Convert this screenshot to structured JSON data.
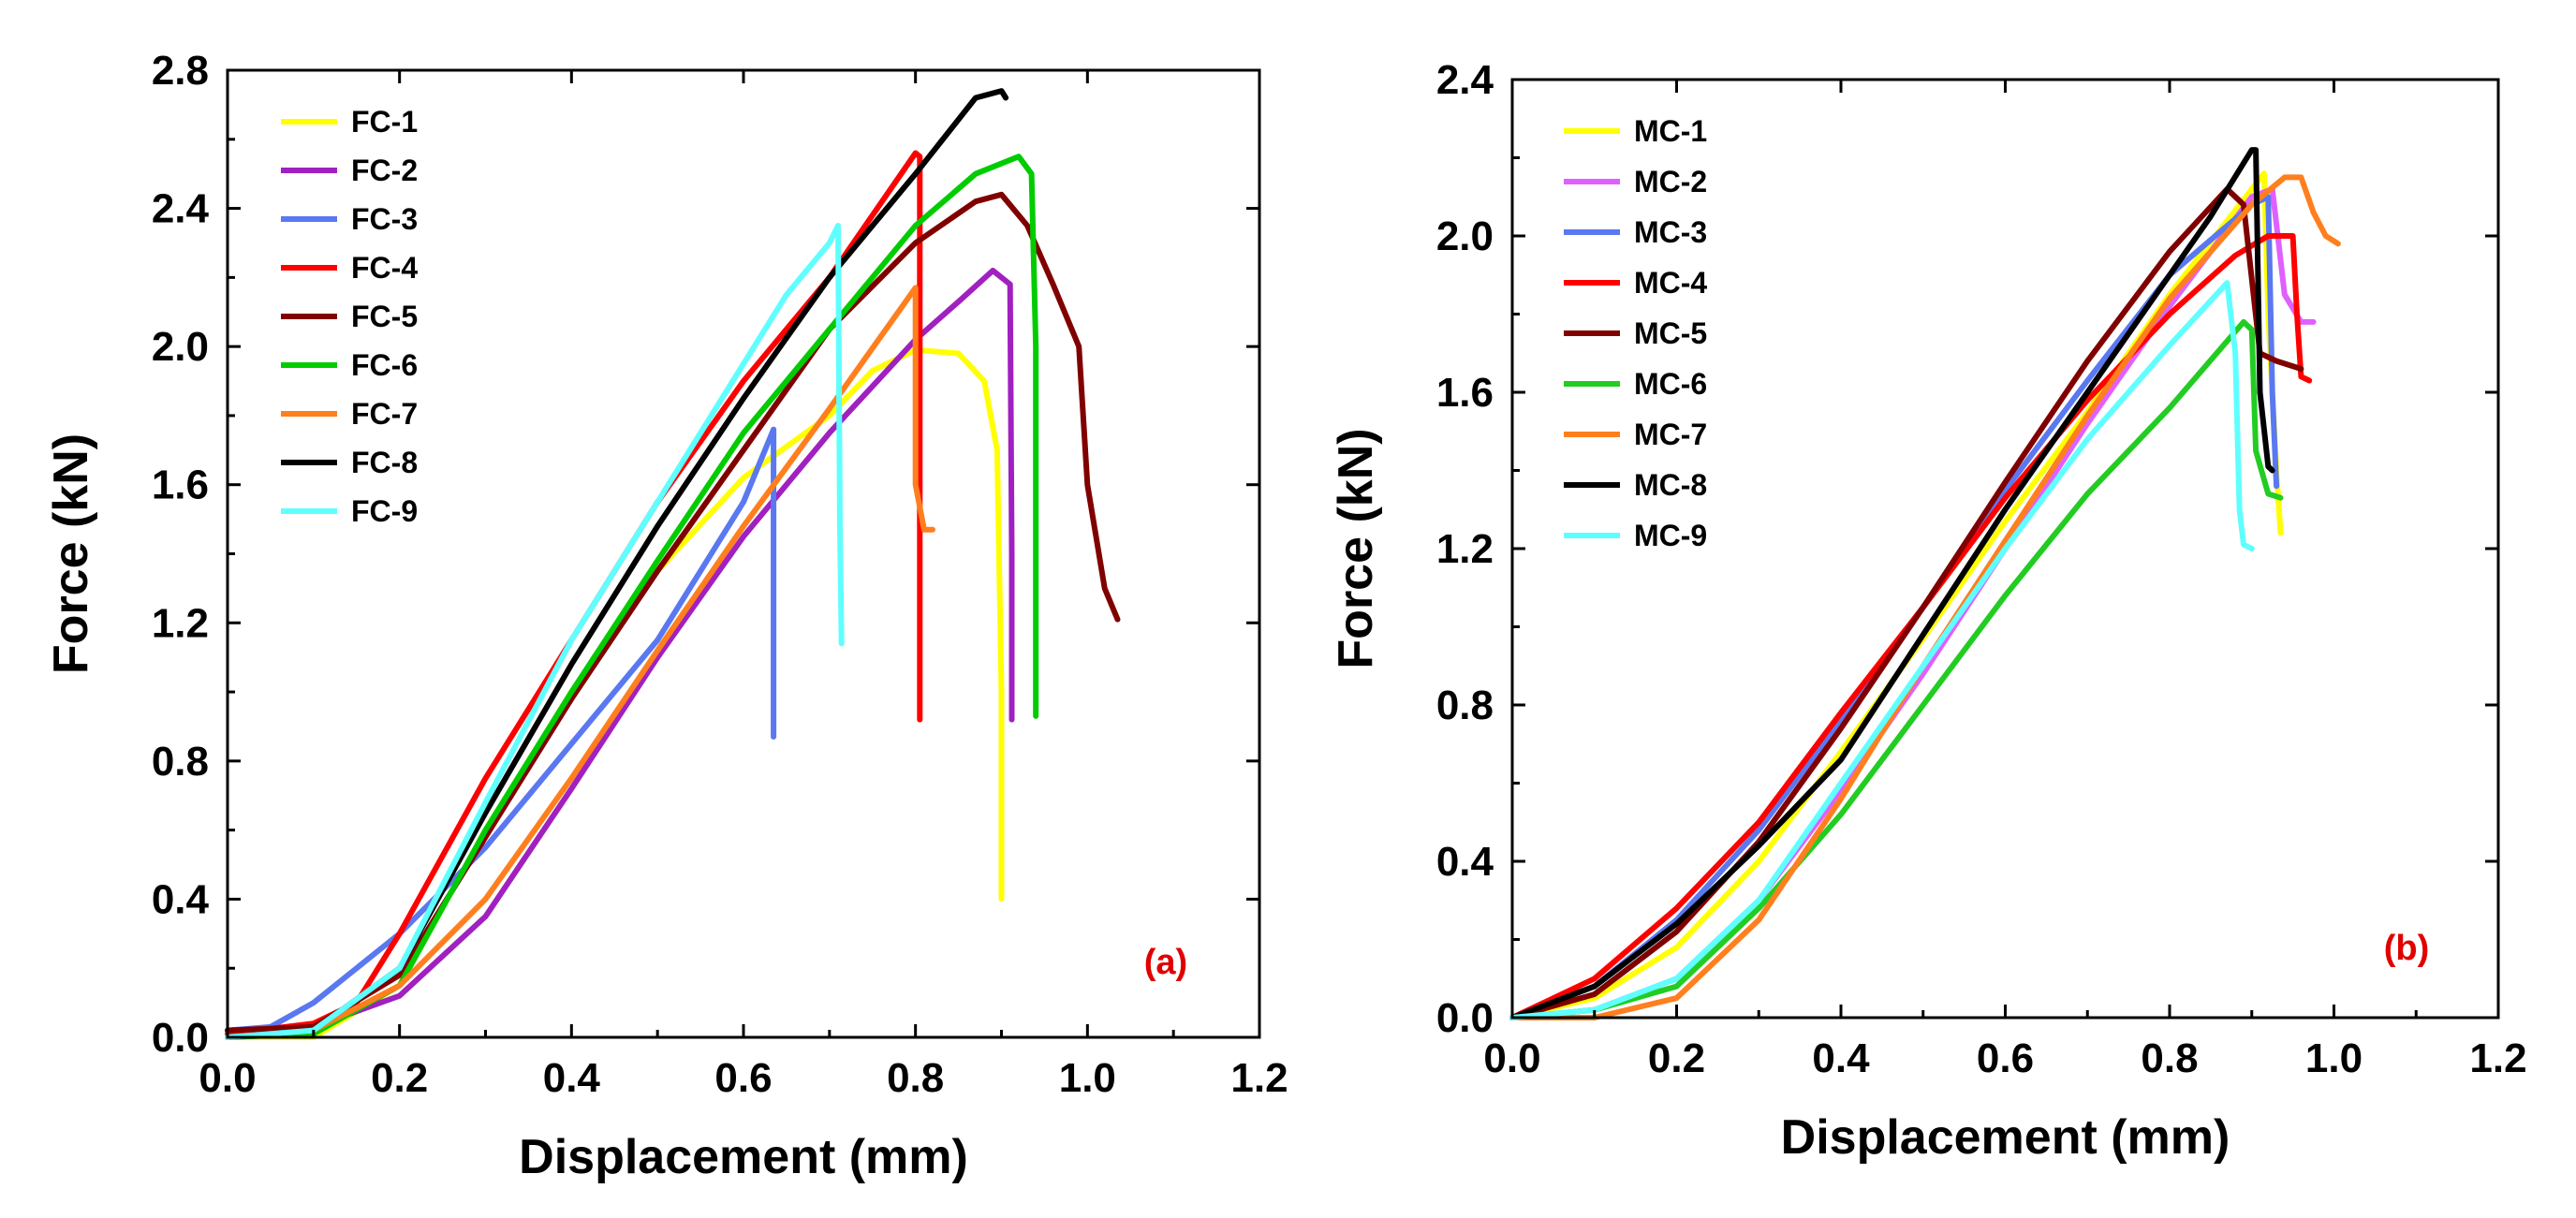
{
  "chart_data": [
    {
      "type": "line",
      "panel": "(a)",
      "xlabel": "Displacement (mm)",
      "ylabel": "Force (kN)",
      "xlim": [
        0.0,
        1.2
      ],
      "ylim": [
        0.0,
        2.8
      ],
      "xticks": [
        "0.0",
        "0.2",
        "0.4",
        "0.6",
        "0.8",
        "1.0",
        "1.2"
      ],
      "yticks": [
        "0.0",
        "0.4",
        "0.8",
        "1.2",
        "1.6",
        "2.0",
        "2.4",
        "2.8"
      ],
      "legend_position": "top-left",
      "series": [
        {
          "name": "FC-1",
          "color": "#ffff00",
          "points": [
            [
              0.0,
              0.0
            ],
            [
              0.1,
              0.0
            ],
            [
              0.2,
              0.15
            ],
            [
              0.3,
              0.6
            ],
            [
              0.4,
              1.0
            ],
            [
              0.5,
              1.35
            ],
            [
              0.6,
              1.62
            ],
            [
              0.7,
              1.8
            ],
            [
              0.75,
              1.93
            ],
            [
              0.8,
              1.99
            ],
            [
              0.85,
              1.98
            ],
            [
              0.88,
              1.9
            ],
            [
              0.895,
              1.7
            ],
            [
              0.9,
              1.0
            ],
            [
              0.9,
              0.4
            ]
          ]
        },
        {
          "name": "FC-2",
          "color": "#a020c0",
          "points": [
            [
              0.0,
              0.02
            ],
            [
              0.1,
              0.03
            ],
            [
              0.2,
              0.12
            ],
            [
              0.3,
              0.35
            ],
            [
              0.4,
              0.72
            ],
            [
              0.5,
              1.1
            ],
            [
              0.6,
              1.45
            ],
            [
              0.7,
              1.75
            ],
            [
              0.8,
              2.02
            ],
            [
              0.85,
              2.13
            ],
            [
              0.89,
              2.22
            ],
            [
              0.91,
              2.18
            ],
            [
              0.912,
              1.4
            ],
            [
              0.912,
              0.92
            ]
          ]
        },
        {
          "name": "FC-3",
          "color": "#5a78f0",
          "points": [
            [
              0.0,
              0.02
            ],
            [
              0.05,
              0.03
            ],
            [
              0.1,
              0.1
            ],
            [
              0.2,
              0.3
            ],
            [
              0.3,
              0.55
            ],
            [
              0.4,
              0.85
            ],
            [
              0.5,
              1.15
            ],
            [
              0.6,
              1.55
            ],
            [
              0.635,
              1.76
            ],
            [
              0.635,
              1.3
            ],
            [
              0.635,
              0.87
            ]
          ]
        },
        {
          "name": "FC-4",
          "color": "#ff0000",
          "points": [
            [
              0.0,
              0.01
            ],
            [
              0.1,
              0.04
            ],
            [
              0.15,
              0.1
            ],
            [
              0.2,
              0.3
            ],
            [
              0.3,
              0.75
            ],
            [
              0.4,
              1.15
            ],
            [
              0.5,
              1.55
            ],
            [
              0.6,
              1.9
            ],
            [
              0.7,
              2.2
            ],
            [
              0.8,
              2.56
            ],
            [
              0.805,
              2.55
            ],
            [
              0.805,
              1.6
            ],
            [
              0.805,
              0.92
            ]
          ]
        },
        {
          "name": "FC-5",
          "color": "#800000",
          "points": [
            [
              0.0,
              0.02
            ],
            [
              0.1,
              0.03
            ],
            [
              0.2,
              0.18
            ],
            [
              0.3,
              0.58
            ],
            [
              0.4,
              0.98
            ],
            [
              0.5,
              1.35
            ],
            [
              0.6,
              1.7
            ],
            [
              0.7,
              2.05
            ],
            [
              0.8,
              2.3
            ],
            [
              0.87,
              2.42
            ],
            [
              0.9,
              2.44
            ],
            [
              0.93,
              2.35
            ],
            [
              0.96,
              2.18
            ],
            [
              0.99,
              2.0
            ],
            [
              1.0,
              1.6
            ],
            [
              1.02,
              1.3
            ],
            [
              1.035,
              1.21
            ]
          ]
        },
        {
          "name": "FC-6",
          "color": "#00cc00",
          "points": [
            [
              0.0,
              0.0
            ],
            [
              0.1,
              0.01
            ],
            [
              0.2,
              0.15
            ],
            [
              0.3,
              0.6
            ],
            [
              0.4,
              1.0
            ],
            [
              0.5,
              1.38
            ],
            [
              0.6,
              1.75
            ],
            [
              0.7,
              2.05
            ],
            [
              0.8,
              2.35
            ],
            [
              0.87,
              2.5
            ],
            [
              0.92,
              2.55
            ],
            [
              0.935,
              2.5
            ],
            [
              0.94,
              2.0
            ],
            [
              0.94,
              0.93
            ]
          ]
        },
        {
          "name": "FC-7",
          "color": "#ff7f1e",
          "points": [
            [
              0.0,
              0.0
            ],
            [
              0.1,
              0.02
            ],
            [
              0.2,
              0.15
            ],
            [
              0.3,
              0.4
            ],
            [
              0.4,
              0.75
            ],
            [
              0.5,
              1.12
            ],
            [
              0.6,
              1.48
            ],
            [
              0.7,
              1.82
            ],
            [
              0.78,
              2.1
            ],
            [
              0.8,
              2.17
            ],
            [
              0.8,
              1.6
            ],
            [
              0.81,
              1.47
            ],
            [
              0.82,
              1.47
            ]
          ]
        },
        {
          "name": "FC-8",
          "color": "#000000",
          "points": [
            [
              0.0,
              0.0
            ],
            [
              0.1,
              0.02
            ],
            [
              0.2,
              0.2
            ],
            [
              0.3,
              0.65
            ],
            [
              0.4,
              1.08
            ],
            [
              0.5,
              1.48
            ],
            [
              0.6,
              1.85
            ],
            [
              0.7,
              2.2
            ],
            [
              0.8,
              2.5
            ],
            [
              0.87,
              2.72
            ],
            [
              0.9,
              2.74
            ],
            [
              0.905,
              2.72
            ]
          ]
        },
        {
          "name": "FC-9",
          "color": "#60ffff",
          "points": [
            [
              0.0,
              0.0
            ],
            [
              0.1,
              0.02
            ],
            [
              0.2,
              0.2
            ],
            [
              0.3,
              0.68
            ],
            [
              0.4,
              1.15
            ],
            [
              0.5,
              1.55
            ],
            [
              0.6,
              1.95
            ],
            [
              0.65,
              2.15
            ],
            [
              0.7,
              2.3
            ],
            [
              0.71,
              2.35
            ],
            [
              0.712,
              1.5
            ],
            [
              0.714,
              1.14
            ]
          ]
        }
      ]
    },
    {
      "type": "line",
      "panel": "(b)",
      "xlabel": "Displacement (mm)",
      "ylabel": "Force (kN)",
      "xlim": [
        0.0,
        1.2
      ],
      "ylim": [
        0.0,
        2.4
      ],
      "xticks": [
        "0.0",
        "0.2",
        "0.4",
        "0.6",
        "0.8",
        "1.0",
        "1.2"
      ],
      "yticks": [
        "0.0",
        "0.4",
        "0.8",
        "1.2",
        "1.6",
        "2.0",
        "2.4"
      ],
      "legend_position": "top-left",
      "series": [
        {
          "name": "MC-1",
          "color": "#ffff00",
          "points": [
            [
              0.0,
              0.0
            ],
            [
              0.1,
              0.05
            ],
            [
              0.2,
              0.18
            ],
            [
              0.3,
              0.4
            ],
            [
              0.4,
              0.68
            ],
            [
              0.5,
              0.97
            ],
            [
              0.6,
              1.27
            ],
            [
              0.7,
              1.55
            ],
            [
              0.8,
              1.85
            ],
            [
              0.9,
              2.12
            ],
            [
              0.915,
              2.16
            ],
            [
              0.92,
              1.8
            ],
            [
              0.93,
              1.4
            ],
            [
              0.935,
              1.24
            ]
          ]
        },
        {
          "name": "MC-2",
          "color": "#e060ff",
          "points": [
            [
              0.0,
              0.0
            ],
            [
              0.1,
              0.02
            ],
            [
              0.2,
              0.1
            ],
            [
              0.3,
              0.3
            ],
            [
              0.4,
              0.58
            ],
            [
              0.5,
              0.88
            ],
            [
              0.6,
              1.2
            ],
            [
              0.7,
              1.52
            ],
            [
              0.8,
              1.82
            ],
            [
              0.9,
              2.1
            ],
            [
              0.925,
              2.12
            ],
            [
              0.94,
              1.85
            ],
            [
              0.96,
              1.78
            ],
            [
              0.975,
              1.78
            ]
          ]
        },
        {
          "name": "MC-3",
          "color": "#5a78f0",
          "points": [
            [
              0.0,
              0.0
            ],
            [
              0.1,
              0.08
            ],
            [
              0.2,
              0.25
            ],
            [
              0.3,
              0.48
            ],
            [
              0.4,
              0.76
            ],
            [
              0.5,
              1.05
            ],
            [
              0.6,
              1.35
            ],
            [
              0.7,
              1.63
            ],
            [
              0.8,
              1.9
            ],
            [
              0.9,
              2.08
            ],
            [
              0.92,
              2.1
            ],
            [
              0.925,
              1.6
            ],
            [
              0.93,
              1.36
            ]
          ]
        },
        {
          "name": "MC-4",
          "color": "#ff0000",
          "points": [
            [
              0.0,
              0.0
            ],
            [
              0.1,
              0.1
            ],
            [
              0.2,
              0.28
            ],
            [
              0.3,
              0.5
            ],
            [
              0.4,
              0.78
            ],
            [
              0.5,
              1.05
            ],
            [
              0.6,
              1.33
            ],
            [
              0.7,
              1.58
            ],
            [
              0.8,
              1.8
            ],
            [
              0.88,
              1.95
            ],
            [
              0.92,
              2.0
            ],
            [
              0.95,
              2.0
            ],
            [
              0.955,
              1.8
            ],
            [
              0.96,
              1.64
            ],
            [
              0.97,
              1.63
            ]
          ]
        },
        {
          "name": "MC-5",
          "color": "#800000",
          "points": [
            [
              0.0,
              0.0
            ],
            [
              0.1,
              0.06
            ],
            [
              0.2,
              0.22
            ],
            [
              0.3,
              0.45
            ],
            [
              0.4,
              0.74
            ],
            [
              0.5,
              1.05
            ],
            [
              0.6,
              1.37
            ],
            [
              0.7,
              1.68
            ],
            [
              0.8,
              1.96
            ],
            [
              0.87,
              2.12
            ],
            [
              0.89,
              2.08
            ],
            [
              0.91,
              1.7
            ],
            [
              0.93,
              1.68
            ],
            [
              0.96,
              1.66
            ]
          ]
        },
        {
          "name": "MC-6",
          "color": "#22cc22",
          "points": [
            [
              0.0,
              0.0
            ],
            [
              0.1,
              0.02
            ],
            [
              0.2,
              0.08
            ],
            [
              0.3,
              0.28
            ],
            [
              0.4,
              0.52
            ],
            [
              0.5,
              0.8
            ],
            [
              0.6,
              1.08
            ],
            [
              0.7,
              1.34
            ],
            [
              0.8,
              1.56
            ],
            [
              0.89,
              1.78
            ],
            [
              0.9,
              1.76
            ],
            [
              0.905,
              1.45
            ],
            [
              0.92,
              1.34
            ],
            [
              0.935,
              1.33
            ]
          ]
        },
        {
          "name": "MC-7",
          "color": "#ff7f1e",
          "points": [
            [
              0.0,
              0.0
            ],
            [
              0.1,
              0.0
            ],
            [
              0.2,
              0.05
            ],
            [
              0.3,
              0.25
            ],
            [
              0.4,
              0.56
            ],
            [
              0.5,
              0.9
            ],
            [
              0.6,
              1.22
            ],
            [
              0.7,
              1.54
            ],
            [
              0.8,
              1.84
            ],
            [
              0.9,
              2.08
            ],
            [
              0.94,
              2.15
            ],
            [
              0.96,
              2.15
            ],
            [
              0.975,
              2.06
            ],
            [
              0.99,
              2.0
            ],
            [
              1.005,
              1.98
            ]
          ]
        },
        {
          "name": "MC-8",
          "color": "#000000",
          "points": [
            [
              0.0,
              0.0
            ],
            [
              0.1,
              0.08
            ],
            [
              0.2,
              0.24
            ],
            [
              0.3,
              0.44
            ],
            [
              0.4,
              0.66
            ],
            [
              0.5,
              0.98
            ],
            [
              0.6,
              1.3
            ],
            [
              0.7,
              1.6
            ],
            [
              0.8,
              1.9
            ],
            [
              0.85,
              2.05
            ],
            [
              0.9,
              2.22
            ],
            [
              0.905,
              2.22
            ],
            [
              0.91,
              1.6
            ],
            [
              0.92,
              1.41
            ],
            [
              0.925,
              1.4
            ]
          ]
        },
        {
          "name": "MC-9",
          "color": "#60ffff",
          "points": [
            [
              0.0,
              0.0
            ],
            [
              0.1,
              0.02
            ],
            [
              0.2,
              0.1
            ],
            [
              0.3,
              0.3
            ],
            [
              0.4,
              0.6
            ],
            [
              0.5,
              0.9
            ],
            [
              0.6,
              1.2
            ],
            [
              0.7,
              1.48
            ],
            [
              0.8,
              1.72
            ],
            [
              0.87,
              1.88
            ],
            [
              0.88,
              1.7
            ],
            [
              0.885,
              1.3
            ],
            [
              0.89,
              1.21
            ],
            [
              0.9,
              1.2
            ]
          ]
        }
      ]
    }
  ]
}
